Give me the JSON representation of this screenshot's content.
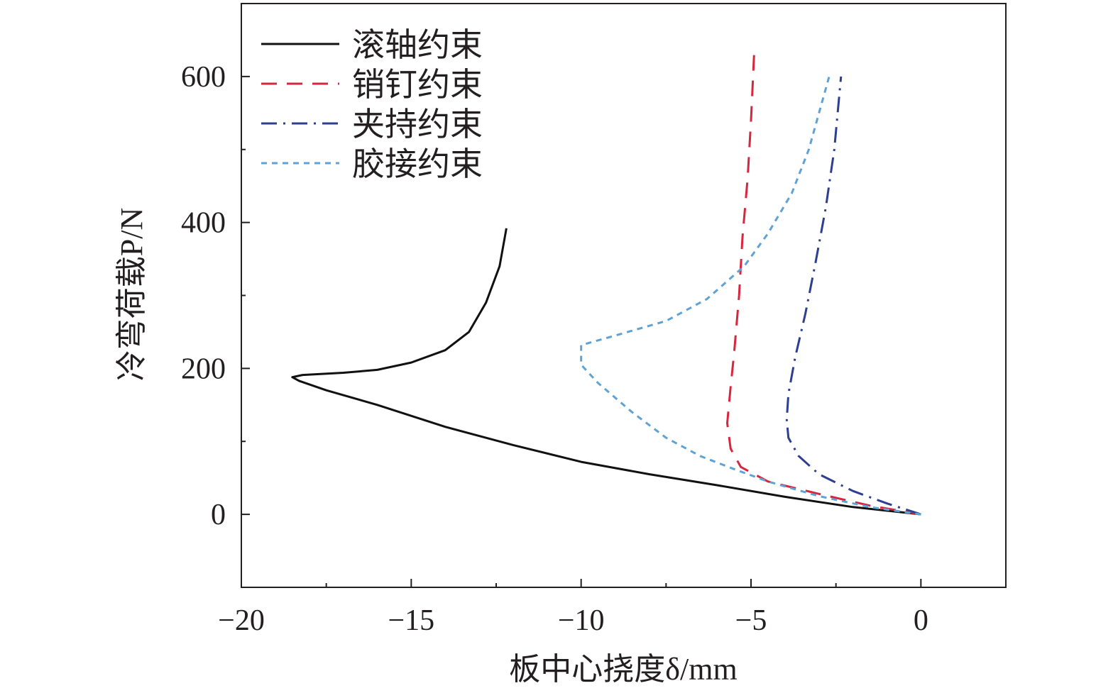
{
  "chart_data": {
    "type": "line",
    "xlabel": "板中心挠度δ/mm",
    "ylabel": "冷弯荷载P/N",
    "xlim": [
      -20,
      2.5
    ],
    "ylim": [
      -100,
      700
    ],
    "xticks": [
      -20,
      -15,
      -10,
      -5,
      0
    ],
    "xtick_labels": [
      "−20",
      "−15",
      "−10",
      "−5",
      "0"
    ],
    "yticks": [
      0,
      200,
      400,
      600
    ],
    "ytick_labels": [
      "0",
      "200",
      "400",
      "600"
    ],
    "grid": false,
    "legend_position": "top-left",
    "series": [
      {
        "name": "滚轴约束",
        "color": "#111111",
        "dash": "solid",
        "points": [
          [
            0,
            0
          ],
          [
            -2,
            10
          ],
          [
            -4,
            24
          ],
          [
            -6,
            40
          ],
          [
            -8,
            55
          ],
          [
            -10,
            72
          ],
          [
            -12,
            95
          ],
          [
            -14,
            120
          ],
          [
            -16,
            150
          ],
          [
            -17.5,
            170
          ],
          [
            -18.3,
            183
          ],
          [
            -18.5,
            188
          ],
          [
            -18.2,
            191
          ],
          [
            -17,
            194
          ],
          [
            -16,
            198
          ],
          [
            -15,
            208
          ],
          [
            -14,
            225
          ],
          [
            -13.3,
            250
          ],
          [
            -12.8,
            290
          ],
          [
            -12.4,
            340
          ],
          [
            -12.2,
            392
          ]
        ]
      },
      {
        "name": "销钉约束",
        "color": "#d7263d",
        "dash": "dashed",
        "points": [
          [
            0,
            0
          ],
          [
            -1.5,
            12
          ],
          [
            -3,
            28
          ],
          [
            -4.5,
            45
          ],
          [
            -5.3,
            65
          ],
          [
            -5.6,
            90
          ],
          [
            -5.7,
            125
          ],
          [
            -5.6,
            175
          ],
          [
            -5.5,
            220
          ],
          [
            -5.35,
            300
          ],
          [
            -5.25,
            380
          ],
          [
            -5.1,
            460
          ],
          [
            -5.0,
            540
          ],
          [
            -4.9,
            640
          ]
        ]
      },
      {
        "name": "夹持约束",
        "color": "#2e3f92",
        "dash": "dashdot",
        "points": [
          [
            0,
            0
          ],
          [
            -1,
            15
          ],
          [
            -2,
            32
          ],
          [
            -3,
            55
          ],
          [
            -3.6,
            80
          ],
          [
            -3.9,
            105
          ],
          [
            -3.95,
            130
          ],
          [
            -3.9,
            165
          ],
          [
            -3.7,
            215
          ],
          [
            -3.4,
            275
          ],
          [
            -3.1,
            345
          ],
          [
            -2.8,
            420
          ],
          [
            -2.55,
            500
          ],
          [
            -2.35,
            600
          ]
        ]
      },
      {
        "name": "胶接约束",
        "color": "#5fa2d6",
        "dash": "dotted",
        "points": [
          [
            0,
            0
          ],
          [
            -1.5,
            10
          ],
          [
            -3,
            25
          ],
          [
            -4.5,
            45
          ],
          [
            -5.5,
            62
          ],
          [
            -6.5,
            80
          ],
          [
            -7.5,
            105
          ],
          [
            -8.5,
            140
          ],
          [
            -9.5,
            180
          ],
          [
            -10,
            205
          ],
          [
            -10,
            232
          ],
          [
            -9,
            245
          ],
          [
            -7.5,
            265
          ],
          [
            -6.3,
            295
          ],
          [
            -5.2,
            340
          ],
          [
            -4.5,
            385
          ],
          [
            -3.8,
            440
          ],
          [
            -3.3,
            500
          ],
          [
            -2.7,
            600
          ]
        ]
      }
    ]
  }
}
